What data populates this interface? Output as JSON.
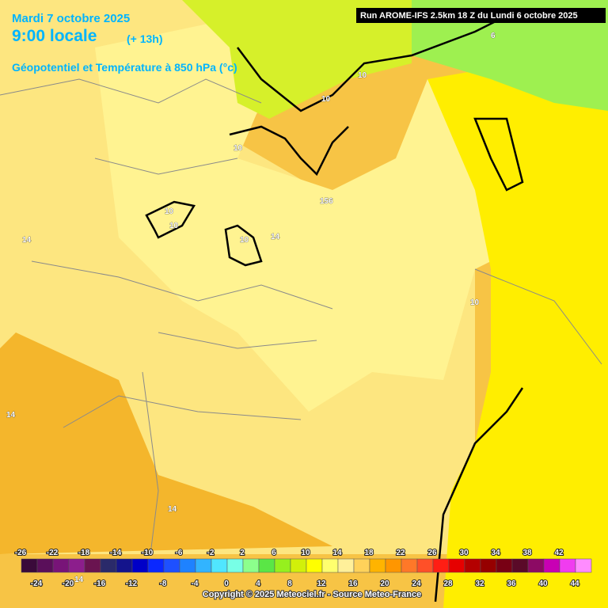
{
  "header": {
    "date": "Mardi 7 octobre 2025",
    "time": "9:00 locale",
    "lead": "(+ 13h)",
    "field": "Géopotentiel et Température à 850 hPa (°c)",
    "run": "Run AROME-IFS 2.5km 18 Z du Lundi 6 octobre 2025"
  },
  "map": {
    "contour_labels": [
      "6",
      "10",
      "10",
      "10",
      "10",
      "10",
      "10",
      "10",
      "14",
      "14",
      "14",
      "14",
      "14",
      "156"
    ]
  },
  "legend": {
    "top_labels": [
      "-26",
      "-22",
      "-18",
      "-14",
      "-10",
      "-6",
      "-2",
      "2",
      "6",
      "10",
      "14",
      "18",
      "22",
      "26",
      "30",
      "34",
      "38",
      "42"
    ],
    "bottom_labels": [
      "-24",
      "-20",
      "-16",
      "-12",
      "-8",
      "-4",
      "0",
      "4",
      "8",
      "12",
      "16",
      "20",
      "24",
      "28",
      "32",
      "36",
      "40",
      "44"
    ]
  },
  "footer": {
    "copyright": "Copyright © 2025 Meteociel.fr - Source Meteo-France"
  }
}
